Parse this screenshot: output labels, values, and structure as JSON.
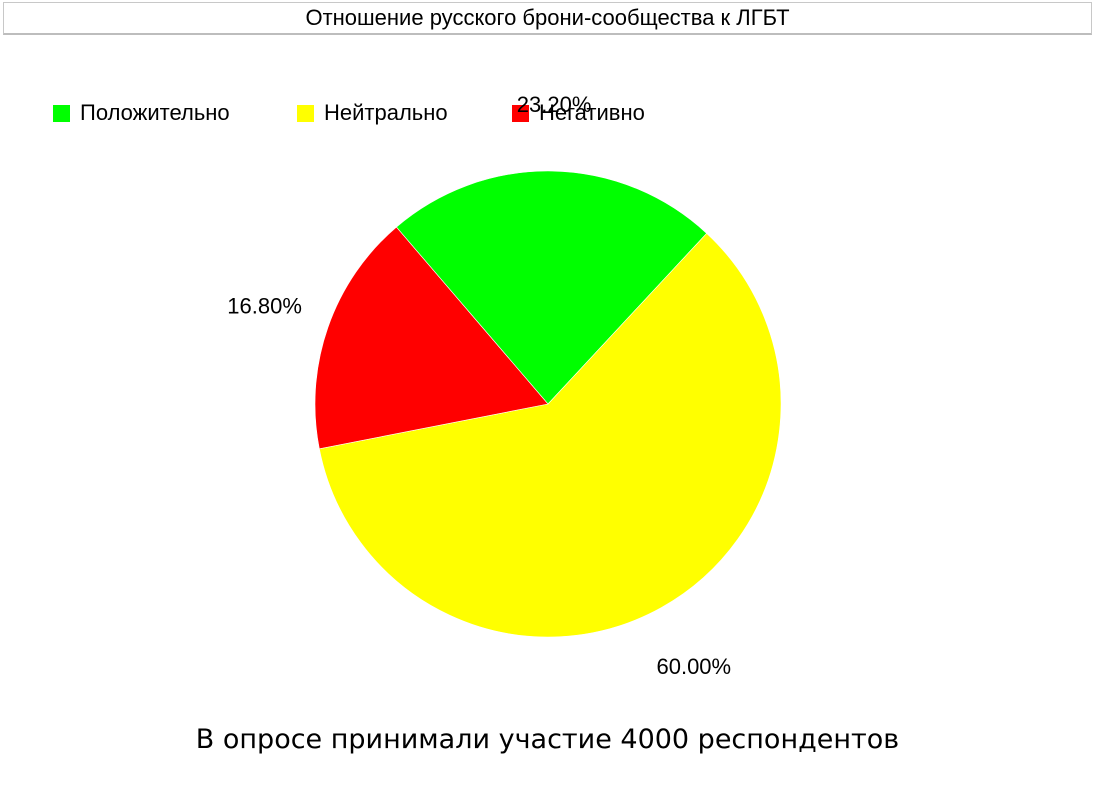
{
  "chart_data": {
    "type": "pie",
    "title": "Отношение русского брони-сообщества к ЛГБТ",
    "legend_position": "top-left",
    "slices": [
      {
        "name": "Положительно",
        "value": 23.2,
        "label": "23.20%",
        "color": "#00ff00"
      },
      {
        "name": "Нейтрально",
        "value": 60.0,
        "label": "60.00%",
        "color": "#ffff00"
      },
      {
        "name": "Негативно",
        "value": 16.8,
        "label": "16.80%",
        "color": "#ff0000"
      }
    ],
    "footnote": "В опросе принимали участие 4000 респондентов"
  }
}
